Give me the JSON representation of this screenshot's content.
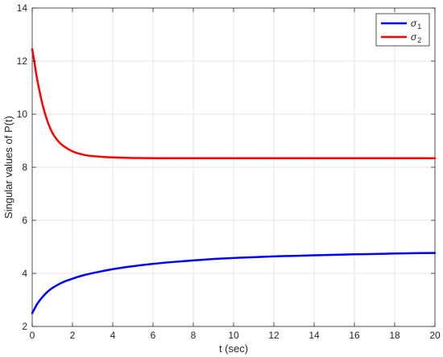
{
  "chart_data": {
    "type": "line",
    "title": "",
    "xlabel": "t (sec)",
    "ylabel": "Singular values of P(t)",
    "xlim": [
      0,
      20
    ],
    "ylim": [
      2,
      14
    ],
    "xticks": [
      0,
      2,
      4,
      6,
      8,
      10,
      12,
      14,
      16,
      18,
      20
    ],
    "yticks": [
      2,
      4,
      6,
      8,
      10,
      12,
      14
    ],
    "grid": true,
    "legend": "top-right",
    "series": [
      {
        "name": "σ",
        "subscript": "1",
        "color": "#0000ff",
        "x": [
          0,
          0.25,
          0.5,
          0.75,
          1,
          1.5,
          2,
          2.5,
          3,
          4,
          5,
          6,
          7,
          8,
          9,
          10,
          11,
          12,
          13,
          14,
          15,
          16,
          17,
          18,
          19,
          20
        ],
        "y": [
          2.5,
          2.85,
          3.1,
          3.3,
          3.45,
          3.66,
          3.8,
          3.92,
          4.01,
          4.16,
          4.27,
          4.36,
          4.43,
          4.49,
          4.54,
          4.58,
          4.61,
          4.64,
          4.66,
          4.68,
          4.7,
          4.72,
          4.73,
          4.75,
          4.76,
          4.77
        ]
      },
      {
        "name": "σ",
        "subscript": "2",
        "color": "#ff0000",
        "x": [
          0,
          0.1,
          0.25,
          0.5,
          0.75,
          1,
          1.25,
          1.5,
          2,
          2.5,
          3,
          4,
          5,
          6,
          8,
          10,
          12,
          14,
          16,
          18,
          20
        ],
        "y": [
          12.45,
          12.0,
          11.3,
          10.4,
          9.75,
          9.3,
          9.02,
          8.83,
          8.6,
          8.48,
          8.42,
          8.37,
          8.35,
          8.34,
          8.34,
          8.34,
          8.34,
          8.34,
          8.34,
          8.34,
          8.34
        ]
      }
    ]
  }
}
